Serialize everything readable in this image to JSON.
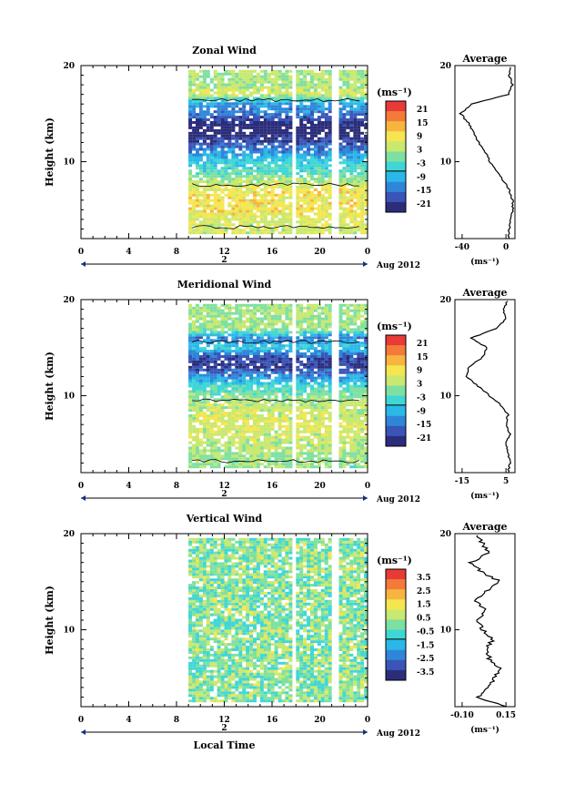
{
  "panels": [
    {
      "id": "zonal",
      "title": "Zonal Wind",
      "ylabel": "Height (km)",
      "yticks": [
        "20",
        "10"
      ],
      "xticks": [
        "0",
        "4",
        "8",
        "12",
        "16",
        "20",
        "0"
      ],
      "date_tick": "2",
      "date_label": "Aug 2012",
      "unit_label": "(ms⁻¹)",
      "colorbar_ticks": [
        "21",
        "15",
        "9",
        "3",
        "-3",
        "-9",
        "-15",
        "-21"
      ],
      "avg_title": "Average",
      "avg_xticks": [
        "-40",
        "0"
      ],
      "avg_unit": "(ms⁻¹)",
      "avg_yticks": [
        "20",
        "10"
      ]
    },
    {
      "id": "meridional",
      "title": "Meridional Wind",
      "ylabel": "Height (km)",
      "yticks": [
        "20",
        "10"
      ],
      "xticks": [
        "0",
        "4",
        "8",
        "12",
        "16",
        "20",
        "0"
      ],
      "date_tick": "2",
      "date_label": "Aug 2012",
      "unit_label": "(ms⁻¹)",
      "colorbar_ticks": [
        "21",
        "15",
        "9",
        "3",
        "-3",
        "-9",
        "-15",
        "-21"
      ],
      "avg_title": "Average",
      "avg_xticks": [
        "-15",
        "5"
      ],
      "avg_unit": "(ms⁻¹)",
      "avg_yticks": [
        "20",
        "10"
      ]
    },
    {
      "id": "vertical",
      "title": "Vertical Wind",
      "ylabel": "Height (km)",
      "yticks": [
        "20",
        "10"
      ],
      "xticks": [
        "0",
        "4",
        "8",
        "12",
        "16",
        "20",
        "0"
      ],
      "date_tick": "2",
      "date_label": "Aug 2012",
      "unit_label": "(ms⁻¹)",
      "colorbar_ticks": [
        "3.5",
        "2.5",
        "1.5",
        "0.5",
        "-0.5",
        "-1.5",
        "-2.5",
        "-3.5"
      ],
      "avg_title": "Average",
      "avg_xticks": [
        "-0.10",
        "0.15"
      ],
      "avg_unit": "(ms⁻¹)",
      "avg_yticks": [
        "20",
        "10"
      ]
    }
  ],
  "xlabel": "Local Time",
  "colors": {
    "cmap": [
      "#2b2d7a",
      "#3a54b8",
      "#2f86d8",
      "#2ab8e8",
      "#40d6d6",
      "#7ee0a0",
      "#c8e870",
      "#f5e650",
      "#f7b540",
      "#f47a3a",
      "#e83a36"
    ],
    "line": "#000000",
    "axis_marker": "#1a2a8a"
  },
  "chart_data": [
    {
      "type": "heatmap",
      "title": "Zonal Wind",
      "ylabel": "Height (km)",
      "xlabel": "Local Time",
      "xlim_hours": [
        0,
        24
      ],
      "ylim_km": [
        2,
        20
      ],
      "data_start_hour": 9,
      "data_gaps_hours": [
        [
          17.5,
          18.0
        ],
        [
          21.0,
          21.4
        ]
      ],
      "colorbar_range": [
        -24,
        24
      ],
      "profile_by_height": {
        "heights_km": [
          3,
          4,
          5,
          6,
          7,
          8,
          9,
          10,
          11,
          12,
          13,
          14,
          15,
          16,
          17,
          18
        ],
        "values_ms": [
          5,
          6,
          9,
          9,
          8,
          3,
          -3,
          -6,
          -12,
          -18,
          -24,
          -22,
          -14,
          -12,
          6,
          3
        ]
      },
      "average_profile": {
        "xlim": [
          -45,
          8
        ],
        "heights_km": [
          2,
          3,
          4,
          5,
          6,
          7,
          8,
          9,
          10,
          11,
          12,
          13,
          14,
          15,
          16,
          17,
          18,
          19,
          20
        ],
        "values_ms": [
          2,
          3,
          4,
          6,
          6,
          3,
          -2,
          -8,
          -14,
          -18,
          -24,
          -28,
          -33,
          -40,
          -30,
          2,
          6,
          3,
          5
        ]
      }
    },
    {
      "type": "heatmap",
      "title": "Meridional Wind",
      "ylabel": "Height (km)",
      "xlabel": "Local Time",
      "xlim_hours": [
        0,
        24
      ],
      "ylim_km": [
        2,
        20
      ],
      "data_start_hour": 9,
      "data_gaps_hours": [
        [
          17.5,
          18.0
        ],
        [
          21.0,
          21.4
        ]
      ],
      "colorbar_range": [
        -24,
        24
      ],
      "profile_by_height": {
        "heights_km": [
          3,
          4,
          5,
          6,
          7,
          8,
          9,
          10,
          11,
          12,
          13,
          14,
          15,
          16,
          17,
          18
        ],
        "values_ms": [
          1,
          2,
          4,
          5,
          6,
          5,
          4,
          1,
          -4,
          -12,
          -20,
          -18,
          -6,
          -14,
          3,
          2
        ]
      },
      "average_profile": {
        "xlim": [
          -20,
          6
        ],
        "heights_km": [
          2,
          3,
          4,
          5,
          6,
          7,
          8,
          9,
          10,
          11,
          12,
          13,
          14,
          15,
          16,
          17,
          18,
          19,
          20
        ],
        "values_ms": [
          3,
          4,
          3,
          2,
          4,
          2,
          3,
          0,
          -5,
          -10,
          -15,
          -14,
          -8,
          -6,
          -13,
          -2,
          2,
          1,
          3
        ]
      }
    },
    {
      "type": "heatmap",
      "title": "Vertical Wind",
      "ylabel": "Height (km)",
      "xlabel": "Local Time",
      "xlim_hours": [
        0,
        24
      ],
      "ylim_km": [
        2,
        20
      ],
      "data_start_hour": 9,
      "data_gaps_hours": [
        [
          17.5,
          18.0
        ],
        [
          21.0,
          21.4
        ]
      ],
      "colorbar_range": [
        -4,
        4
      ],
      "profile_by_height": {
        "heights_km": [
          3,
          4,
          5,
          6,
          7,
          8,
          9,
          10,
          11,
          12,
          13,
          14,
          15,
          16,
          17,
          18,
          19
        ],
        "values_ms": [
          0,
          0,
          0,
          0,
          0,
          0,
          0,
          0,
          0,
          0,
          0,
          0,
          0,
          0,
          0,
          0,
          0
        ]
      },
      "average_profile": {
        "xlim": [
          -0.15,
          0.18
        ],
        "heights_km": [
          2,
          3,
          4,
          5,
          6,
          7,
          8,
          9,
          10,
          11,
          12,
          13,
          14,
          15,
          16,
          17,
          18,
          19,
          20
        ],
        "values_ms": [
          0.12,
          -0.02,
          0.04,
          0.06,
          0.1,
          0.04,
          0.02,
          0.06,
          0.0,
          -0.02,
          0.02,
          -0.04,
          0.02,
          0.1,
          0.0,
          -0.06,
          0.04,
          0.0,
          -0.04
        ]
      }
    }
  ]
}
